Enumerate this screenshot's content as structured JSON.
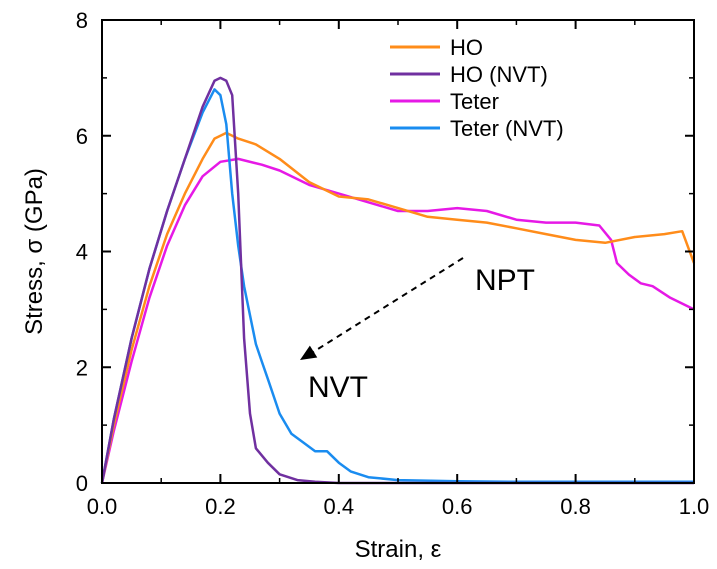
{
  "chart_data": {
    "type": "line",
    "xlabel": "Strain, ε",
    "ylabel": "Stress, σ (GPa)",
    "xlim": [
      0,
      1
    ],
    "ylim": [
      0,
      8
    ],
    "xticks": [
      0.0,
      0.2,
      0.4,
      0.6,
      0.8,
      1.0
    ],
    "xtick_labels": [
      "0.0",
      "0.2",
      "0.4",
      "0.6",
      "0.8",
      "1.0"
    ],
    "yticks": [
      0,
      2,
      4,
      6,
      8
    ],
    "ytick_labels": [
      "0",
      "2",
      "4",
      "6",
      "8"
    ],
    "grid": false,
    "legend_position": "top-right",
    "series": [
      {
        "name": "HO",
        "color": "#ff8c1a",
        "points": [
          [
            0,
            0
          ],
          [
            0.02,
            1.0
          ],
          [
            0.05,
            2.3
          ],
          [
            0.08,
            3.4
          ],
          [
            0.11,
            4.3
          ],
          [
            0.14,
            5.0
          ],
          [
            0.17,
            5.6
          ],
          [
            0.19,
            5.95
          ],
          [
            0.21,
            6.05
          ],
          [
            0.23,
            5.95
          ],
          [
            0.26,
            5.85
          ],
          [
            0.3,
            5.6
          ],
          [
            0.35,
            5.2
          ],
          [
            0.4,
            4.95
          ],
          [
            0.45,
            4.9
          ],
          [
            0.5,
            4.75
          ],
          [
            0.55,
            4.6
          ],
          [
            0.6,
            4.55
          ],
          [
            0.65,
            4.5
          ],
          [
            0.7,
            4.4
          ],
          [
            0.75,
            4.3
          ],
          [
            0.8,
            4.2
          ],
          [
            0.85,
            4.15
          ],
          [
            0.9,
            4.25
          ],
          [
            0.95,
            4.3
          ],
          [
            0.98,
            4.35
          ],
          [
            1.0,
            3.8
          ]
        ]
      },
      {
        "name": "HO (NVT)",
        "color": "#7030a0",
        "points": [
          [
            0,
            0
          ],
          [
            0.02,
            1.1
          ],
          [
            0.05,
            2.5
          ],
          [
            0.08,
            3.7
          ],
          [
            0.11,
            4.7
          ],
          [
            0.14,
            5.6
          ],
          [
            0.17,
            6.5
          ],
          [
            0.19,
            6.95
          ],
          [
            0.2,
            7.0
          ],
          [
            0.21,
            6.95
          ],
          [
            0.22,
            6.7
          ],
          [
            0.23,
            5.0
          ],
          [
            0.24,
            2.5
          ],
          [
            0.25,
            1.2
          ],
          [
            0.26,
            0.6
          ],
          [
            0.28,
            0.35
          ],
          [
            0.3,
            0.15
          ],
          [
            0.33,
            0.05
          ],
          [
            0.36,
            0.02
          ],
          [
            0.4,
            0.0
          ],
          [
            0.5,
            0.0
          ],
          [
            0.6,
            0.0
          ],
          [
            0.7,
            0.0
          ],
          [
            0.8,
            0.0
          ],
          [
            0.9,
            0.0
          ],
          [
            1.0,
            0.0
          ]
        ]
      },
      {
        "name": "Teter",
        "color": "#e619e6",
        "points": [
          [
            0,
            0
          ],
          [
            0.02,
            0.9
          ],
          [
            0.05,
            2.1
          ],
          [
            0.08,
            3.2
          ],
          [
            0.11,
            4.1
          ],
          [
            0.14,
            4.8
          ],
          [
            0.17,
            5.3
          ],
          [
            0.2,
            5.55
          ],
          [
            0.23,
            5.6
          ],
          [
            0.27,
            5.5
          ],
          [
            0.3,
            5.4
          ],
          [
            0.35,
            5.15
          ],
          [
            0.4,
            5.0
          ],
          [
            0.45,
            4.85
          ],
          [
            0.5,
            4.7
          ],
          [
            0.55,
            4.7
          ],
          [
            0.6,
            4.75
          ],
          [
            0.65,
            4.7
          ],
          [
            0.7,
            4.55
          ],
          [
            0.75,
            4.5
          ],
          [
            0.8,
            4.5
          ],
          [
            0.84,
            4.45
          ],
          [
            0.86,
            4.2
          ],
          [
            0.87,
            3.8
          ],
          [
            0.89,
            3.6
          ],
          [
            0.91,
            3.45
          ],
          [
            0.93,
            3.4
          ],
          [
            0.96,
            3.2
          ],
          [
            1.0,
            3.0
          ]
        ]
      },
      {
        "name": "Teter (NVT)",
        "color": "#1a8cf0",
        "points": [
          [
            0,
            0
          ],
          [
            0.02,
            1.1
          ],
          [
            0.05,
            2.5
          ],
          [
            0.08,
            3.7
          ],
          [
            0.11,
            4.7
          ],
          [
            0.14,
            5.6
          ],
          [
            0.17,
            6.4
          ],
          [
            0.19,
            6.8
          ],
          [
            0.2,
            6.7
          ],
          [
            0.21,
            6.2
          ],
          [
            0.22,
            5.0
          ],
          [
            0.23,
            4.1
          ],
          [
            0.24,
            3.4
          ],
          [
            0.25,
            2.9
          ],
          [
            0.26,
            2.4
          ],
          [
            0.27,
            2.1
          ],
          [
            0.28,
            1.8
          ],
          [
            0.3,
            1.2
          ],
          [
            0.32,
            0.85
          ],
          [
            0.34,
            0.7
          ],
          [
            0.36,
            0.55
          ],
          [
            0.38,
            0.55
          ],
          [
            0.4,
            0.35
          ],
          [
            0.42,
            0.2
          ],
          [
            0.45,
            0.1
          ],
          [
            0.5,
            0.05
          ],
          [
            0.6,
            0.03
          ],
          [
            0.7,
            0.02
          ],
          [
            0.8,
            0.02
          ],
          [
            0.9,
            0.02
          ],
          [
            1.0,
            0.02
          ]
        ]
      }
    ],
    "annotations": [
      {
        "text": "NPT"
      },
      {
        "text": "NVT"
      }
    ]
  }
}
